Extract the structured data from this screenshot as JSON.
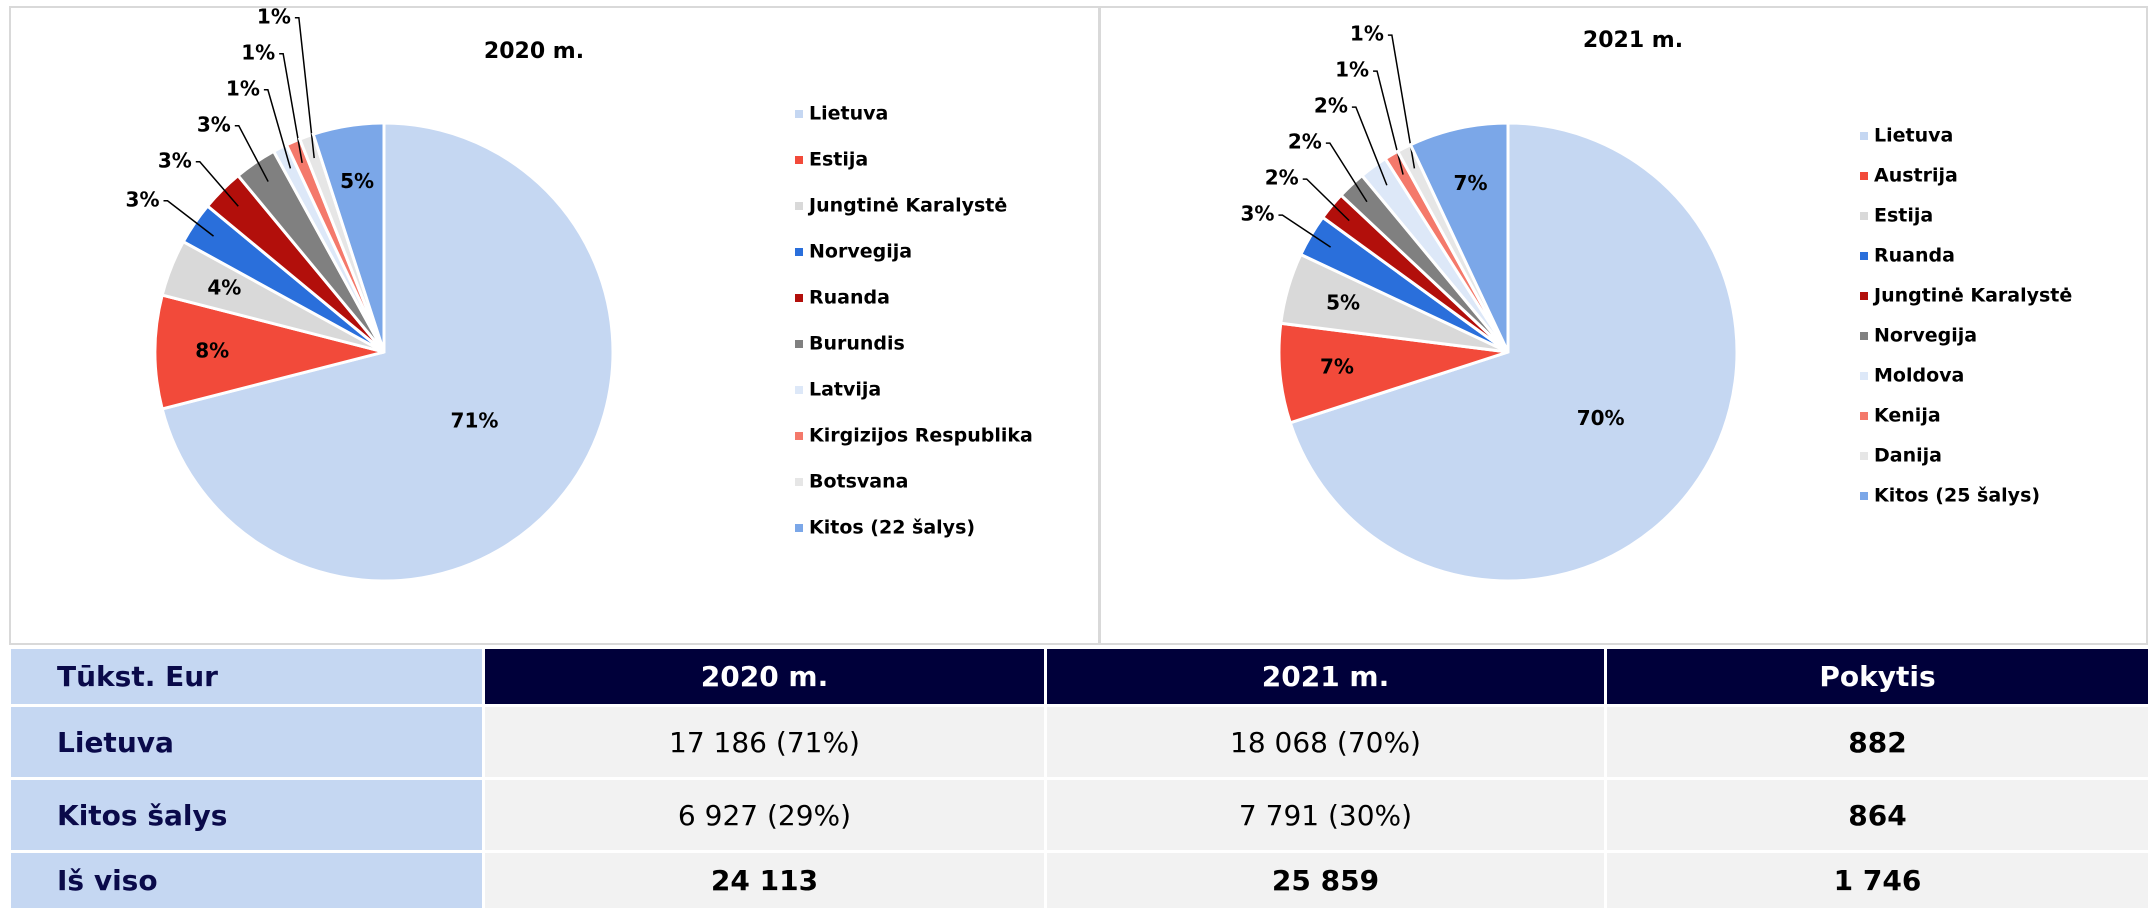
{
  "chart_data": [
    {
      "type": "pie",
      "title": "2020 m.",
      "categories": [
        "Lietuva",
        "Estija",
        "Jungtinė Karalystė",
        "Norvegija",
        "Ruanda",
        "Burundis",
        "Latvija",
        "Kirgizijos Respublika",
        "Botsvana",
        "Kitos (22 šalys)"
      ],
      "values": [
        71,
        8,
        4,
        3,
        3,
        3,
        1,
        1,
        1,
        5
      ],
      "value_labels": [
        "71%",
        "8%",
        "4%",
        "3%",
        "3%",
        "3%",
        "1%",
        "1%",
        "1%",
        "5%"
      ],
      "colors": [
        "#c5d7f2",
        "#f24a3a",
        "#d9d9d9",
        "#2a6fdb",
        "#b20f0b",
        "#808080",
        "#dde8f8",
        "#f4796b",
        "#e6e6e6",
        "#7ba7e8"
      ],
      "legend": "right"
    },
    {
      "type": "pie",
      "title": "2021 m.",
      "categories": [
        "Lietuva",
        "Austrija",
        "Estija",
        "Ruanda",
        "Jungtinė Karalystė",
        "Norvegija",
        "Moldova",
        "Kenija",
        "Danija",
        "Kitos (25 šalys)"
      ],
      "values": [
        70,
        7,
        5,
        3,
        2,
        2,
        2,
        1,
        1,
        7
      ],
      "value_labels": [
        "70%",
        "7%",
        "5%",
        "3%",
        "2%",
        "2%",
        "2%",
        "1%",
        "1%",
        "7%"
      ],
      "colors": [
        "#c5d7f2",
        "#f24a3a",
        "#d9d9d9",
        "#2a6fdb",
        "#b20f0b",
        "#808080",
        "#dde8f8",
        "#f4796b",
        "#e6e6e6",
        "#7ba7e8"
      ],
      "legend": "right"
    }
  ],
  "table": {
    "header": [
      "Tūkst. Eur",
      "2020 m.",
      "2021 m.",
      "Pokytis"
    ],
    "rows": [
      [
        "Lietuva",
        "17 186 (71%)",
        "18 068 (70%)",
        "882"
      ],
      [
        "Kitos šalys",
        "6 927 (29%)",
        "7 791 (30%)",
        "864"
      ],
      [
        "Iš viso",
        "24 113",
        "25 859",
        "1 746"
      ]
    ]
  }
}
